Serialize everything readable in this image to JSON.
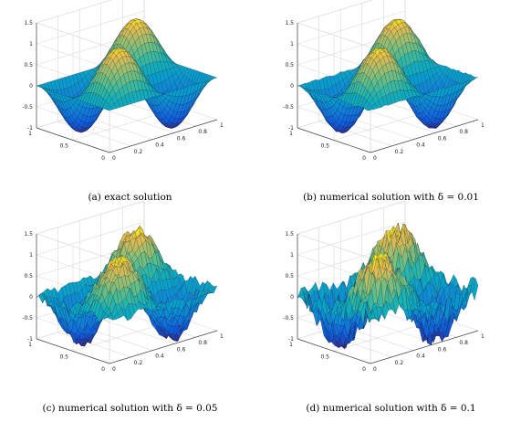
{
  "chart_data": [
    {
      "type": "surface",
      "caption": "(a) exact solution",
      "noise": 0.0,
      "zlim": [
        -1,
        1.5
      ],
      "xlim": [
        0,
        1
      ],
      "ylim": [
        0,
        1
      ],
      "z_ticks": [
        "1.5",
        "1",
        "0.5",
        "0",
        "-0.5",
        "-1"
      ],
      "x_ticks": [
        "0",
        "0.2",
        "0.4",
        "0.6",
        "0.8",
        "1"
      ],
      "y_ticks": [
        "0",
        "0.5",
        "1"
      ],
      "grid": true,
      "colormap": "parula"
    },
    {
      "type": "surface",
      "caption": "(b) numerical solution with δ = 0.01",
      "noise": 0.01,
      "zlim": [
        -1,
        1.5
      ],
      "xlim": [
        0,
        1
      ],
      "ylim": [
        0,
        1
      ],
      "z_ticks": [
        "1.5",
        "1",
        "0.5",
        "0",
        "-0.5",
        "-1"
      ],
      "x_ticks": [
        "0",
        "0.2",
        "0.4",
        "0.6",
        "0.8",
        "1"
      ],
      "y_ticks": [
        "0",
        "0.5",
        "1"
      ],
      "grid": true,
      "colormap": "parula"
    },
    {
      "type": "surface",
      "caption": "(c) numerical solution with δ = 0.05",
      "noise": 0.05,
      "zlim": [
        -1,
        1.5
      ],
      "xlim": [
        0,
        1
      ],
      "ylim": [
        0,
        1
      ],
      "z_ticks": [
        "1.5",
        "1",
        "0.5",
        "0",
        "-0.5",
        "-1"
      ],
      "x_ticks": [
        "0",
        "0.2",
        "0.4",
        "0.6",
        "0.8",
        "1"
      ],
      "y_ticks": [
        "0",
        "0.5",
        "1"
      ],
      "grid": true,
      "colormap": "parula"
    },
    {
      "type": "surface",
      "caption": "(d) numerical solution with δ = 0.1",
      "noise": 0.1,
      "zlim": [
        -1,
        1.5
      ],
      "xlim": [
        0,
        1
      ],
      "ylim": [
        0,
        1
      ],
      "z_ticks": [
        "1.5",
        "1",
        "0.5",
        "0",
        "-0.5",
        "-1"
      ],
      "x_ticks": [
        "0",
        "0.2",
        "0.4",
        "0.6",
        "0.8",
        "1"
      ],
      "y_ticks": [
        "0",
        "0.5",
        "1"
      ],
      "grid": true,
      "colormap": "parula"
    }
  ]
}
